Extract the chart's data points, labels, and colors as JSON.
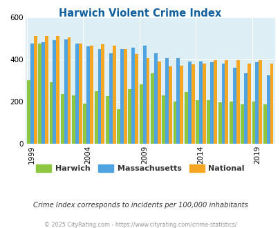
{
  "title": "Harwich Violent Crime Index",
  "title_color": "#1060a0",
  "years": [
    1999,
    2000,
    2001,
    2002,
    2003,
    2004,
    2005,
    2006,
    2007,
    2008,
    2009,
    2010,
    2011,
    2012,
    2013,
    2014,
    2015,
    2016,
    2017,
    2018,
    2019,
    2020
  ],
  "harwich": [
    300,
    475,
    290,
    235,
    230,
    190,
    250,
    225,
    165,
    260,
    280,
    335,
    230,
    200,
    245,
    205,
    205,
    195,
    200,
    185,
    200,
    185
  ],
  "massachusetts": [
    475,
    480,
    490,
    495,
    475,
    460,
    450,
    430,
    450,
    455,
    465,
    430,
    405,
    405,
    390,
    390,
    385,
    380,
    360,
    335,
    385,
    325
  ],
  "national": [
    510,
    510,
    510,
    505,
    475,
    465,
    470,
    465,
    450,
    425,
    405,
    390,
    365,
    370,
    375,
    380,
    395,
    395,
    395,
    380,
    395,
    380
  ],
  "bar_colors": {
    "harwich": "#8dc63f",
    "massachusetts": "#4fa3e0",
    "national": "#f5a623"
  },
  "bg_color": "#ddeef5",
  "ylim": [
    0,
    600
  ],
  "yticks": [
    0,
    200,
    400,
    600
  ],
  "xtick_years": [
    1999,
    2004,
    2009,
    2014,
    2019
  ],
  "footnote": "Crime Index corresponds to incidents per 100,000 inhabitants",
  "copyright": "© 2025 CityRating.com - https://www.cityrating.com/crime-statistics/",
  "legend_labels": [
    "Harwich",
    "Massachusetts",
    "National"
  ],
  "legend_colors": [
    "#8dc63f",
    "#4fa3e0",
    "#f5a623"
  ]
}
